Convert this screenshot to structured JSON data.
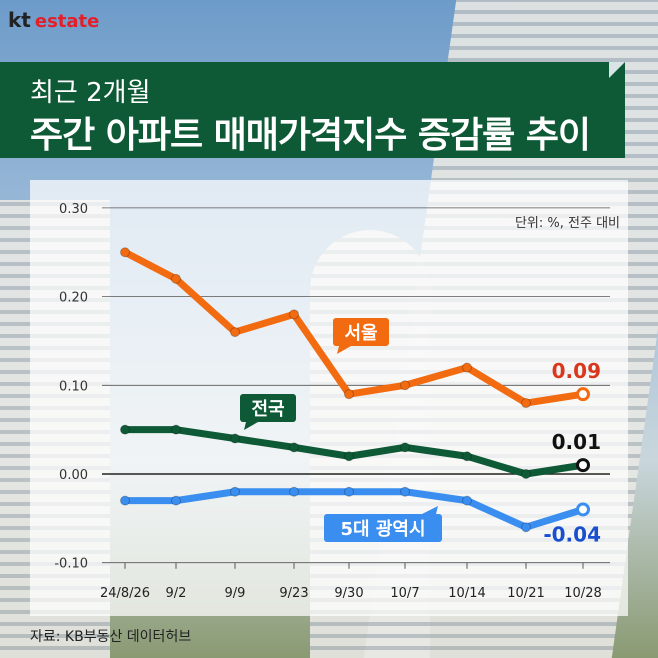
{
  "brand": {
    "kt": "kt",
    "estate": "estate"
  },
  "title": {
    "line1": "최근 2개월",
    "line2": "주간 아파트 매매가격지수 증감률 추이"
  },
  "source": "자료: KB부동산 데이터허브",
  "chart_data": {
    "type": "line",
    "title": "주간 아파트 매매가격지수 증감률 추이",
    "unit_note": "단위: %, 전주 대비",
    "x": [
      "24/8/26",
      "9/2",
      "9/9",
      "9/23",
      "9/30",
      "10/7",
      "10/14",
      "10/21",
      "10/28"
    ],
    "ylim": [
      -0.1,
      0.3
    ],
    "yticks": [
      "0.30",
      "0.20",
      "0.10",
      "0.00",
      "-0.10"
    ],
    "ytick_values": [
      0.3,
      0.2,
      0.1,
      0.0,
      -0.1
    ],
    "grid": true,
    "series": [
      {
        "name": "서울",
        "color": "#f26b11",
        "label_color": "#d9381e",
        "end_label": "0.09",
        "values": [
          0.25,
          0.22,
          0.16,
          0.18,
          0.09,
          0.1,
          0.12,
          0.08,
          0.09
        ]
      },
      {
        "name": "전국",
        "color": "#0f5a36",
        "label_color": "#111111",
        "end_label": "0.01",
        "values": [
          0.05,
          0.05,
          0.04,
          0.03,
          0.02,
          0.03,
          0.02,
          0.0,
          0.01
        ]
      },
      {
        "name": "5대 광역시",
        "color": "#3a8ef0",
        "label_color": "#1a4fd0",
        "end_label": "-0.04",
        "values": [
          -0.03,
          -0.03,
          -0.02,
          -0.02,
          -0.02,
          -0.02,
          -0.03,
          -0.06,
          -0.04
        ]
      }
    ]
  }
}
